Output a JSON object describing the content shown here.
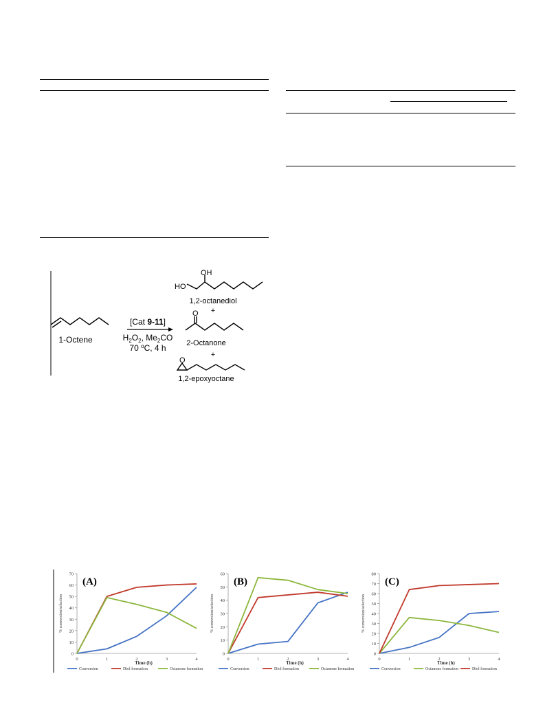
{
  "scheme": {
    "reactant": "1-Octene",
    "catalyst_prefix": "[Cat ",
    "catalyst_bold": "9-11",
    "catalyst_suffix": "]",
    "conditions_line1": "H2O2, Me2CO",
    "conditions_line2": "70 oC, 4 h",
    "products": [
      "1,2-octanediol",
      "2-Octanone",
      "1,2-epoxyoctane"
    ],
    "plus": "+",
    "atom_labels": {
      "oh": "OH",
      "ho": "HO",
      "o": "O"
    }
  },
  "chart_data": [
    {
      "type": "line",
      "panel_label": "(A)",
      "x": [
        0,
        1,
        2,
        3,
        4
      ],
      "xlabel": "Time (h)",
      "ylabel": "% conversion/selection",
      "ylim": [
        0,
        70
      ],
      "yticks": [
        0,
        10,
        20,
        30,
        40,
        50,
        60,
        70
      ],
      "series": [
        {
          "name": "Conversion",
          "color": "#4472c4",
          "values": [
            0,
            4,
            15,
            33,
            58
          ]
        },
        {
          "name": "Diol formation",
          "color": "#c0392b",
          "values": [
            0,
            50,
            58,
            60,
            61
          ]
        },
        {
          "name": "Octanone formation",
          "color": "#8cb63c",
          "values": [
            0,
            49,
            43,
            36,
            22
          ]
        }
      ]
    },
    {
      "type": "line",
      "panel_label": "(B)",
      "x": [
        0,
        1,
        2,
        3,
        4
      ],
      "xlabel": "Time (h)",
      "ylabel": "% conversion/selection",
      "ylim": [
        0,
        60
      ],
      "yticks": [
        0,
        10,
        20,
        30,
        40,
        50,
        60
      ],
      "series": [
        {
          "name": "Conversion",
          "color": "#4472c4",
          "values": [
            0,
            7,
            9,
            38,
            46
          ]
        },
        {
          "name": "Diol formation",
          "color": "#c0392b",
          "values": [
            0,
            42,
            44,
            46,
            43
          ]
        },
        {
          "name": "Octanone formation",
          "color": "#8cb63c",
          "values": [
            0,
            57,
            55,
            48,
            45
          ]
        }
      ]
    },
    {
      "type": "line",
      "panel_label": "(C)",
      "x": [
        0,
        1,
        2,
        3,
        4
      ],
      "xlabel": "Time (h)",
      "ylabel": "% conversion/selection",
      "ylim": [
        0,
        80
      ],
      "yticks": [
        0,
        10,
        20,
        30,
        40,
        50,
        60,
        70,
        80
      ],
      "series": [
        {
          "name": "Conversion",
          "color": "#4472c4",
          "values": [
            0,
            6,
            16,
            40,
            42
          ]
        },
        {
          "name": "Octanone formation",
          "color": "#8cb63c",
          "values": [
            0,
            36,
            33,
            28,
            21
          ]
        },
        {
          "name": "Diol formation",
          "color": "#c0392b",
          "values": [
            0,
            64,
            68,
            69,
            70
          ]
        }
      ]
    }
  ]
}
